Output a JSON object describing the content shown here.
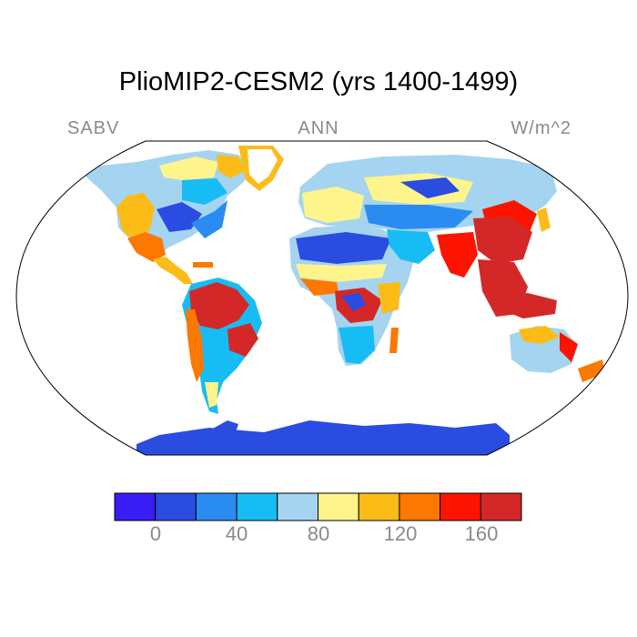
{
  "title": "PlioMIP2-CESM2 (yrs 1400-1499)",
  "left_string": "SABV",
  "center_string": "ANN",
  "right_string": "W/m^2",
  "colors": {
    "ocean": "#ffffff",
    "outline": "#000000",
    "palette": [
      "#3a1cf5",
      "#2a4ce0",
      "#2a8cf0",
      "#18bcf4",
      "#a4d4f0",
      "#fef48c",
      "#fcbc18",
      "#fc7800",
      "#fc1400",
      "#d42828"
    ]
  },
  "colorbar": {
    "labels": [
      "0",
      "40",
      "80",
      "120",
      "160"
    ],
    "boundaries": [
      -20,
      0,
      20,
      40,
      60,
      80,
      100,
      120,
      140,
      160,
      180
    ]
  }
}
